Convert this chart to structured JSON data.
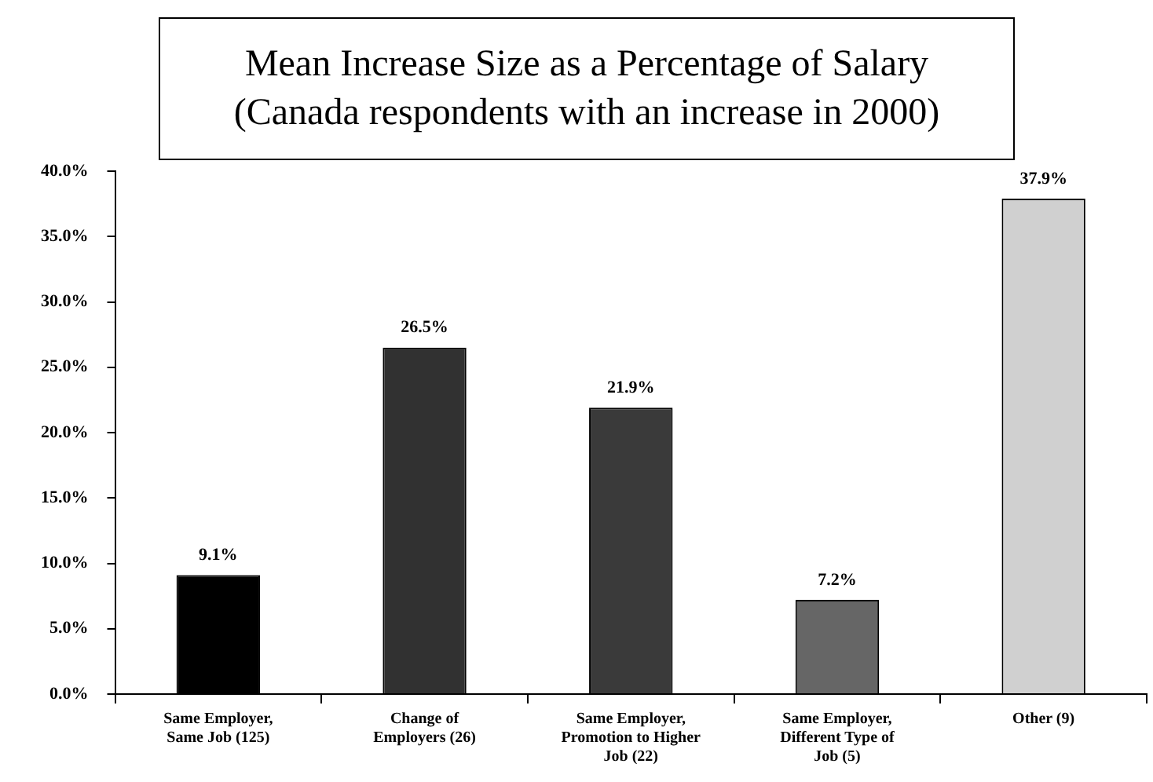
{
  "chart_data": {
    "type": "bar",
    "title": "Mean Increase Size as a Percentage of Salary",
    "subtitle": "(Canada respondents with an increase in 2000)",
    "categories": [
      "Same Employer, Same Job (125)",
      "Change of Employers (26)",
      "Same Employer, Promotion to Higher Job (22)",
      "Same Employer, Different Type of Job (5)",
      "Other (9)"
    ],
    "values": [
      9.1,
      26.5,
      21.9,
      7.2,
      37.9
    ],
    "colors": [
      "#000000",
      "#313131",
      "#3a3a3a",
      "#666666",
      "#d0d0d0"
    ],
    "value_labels": [
      "9.1%",
      "26.5%",
      "21.9%",
      "7.2%",
      "37.9%"
    ],
    "ylim": [
      0,
      40
    ],
    "yticks": [
      {
        "value": 0,
        "label": "0.0%"
      },
      {
        "value": 5,
        "label": "5.0%"
      },
      {
        "value": 10,
        "label": "10.0%"
      },
      {
        "value": 15,
        "label": "15.0%"
      },
      {
        "value": 20,
        "label": "20.0%"
      },
      {
        "value": 25,
        "label": "25.0%"
      },
      {
        "value": 30,
        "label": "30.0%"
      },
      {
        "value": 35,
        "label": "35.0%"
      },
      {
        "value": 40,
        "label": "40.0%"
      }
    ]
  }
}
